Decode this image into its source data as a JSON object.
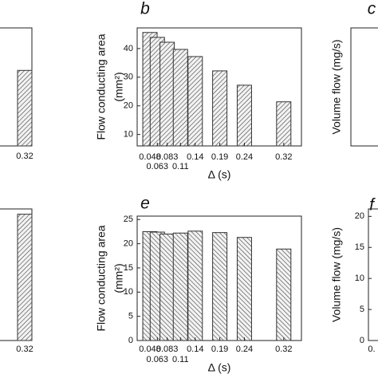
{
  "chart_data": [
    {
      "type": "bar",
      "x": [
        0.32
      ],
      "values": [
        32
      ],
      "ylim": [
        0,
        50
      ],
      "xticks": [
        0.32
      ]
    },
    {
      "type": "bar",
      "title": "b",
      "ylabel": [
        "Flow conducting area",
        "(mm²)"
      ],
      "xlabel": "Δ (s)",
      "x": [
        0.048,
        0.063,
        0.083,
        0.11,
        0.14,
        0.19,
        0.24,
        0.32
      ],
      "values": [
        45.6,
        43.9,
        42.2,
        39.7,
        37.2,
        32.2,
        27.2,
        21.4
      ],
      "xlim": [
        0.022,
        0.356
      ],
      "xticks": [
        0.048,
        0.063,
        0.083,
        0.11,
        0.14,
        0.19,
        0.24,
        0.32
      ],
      "ylim": [
        6,
        47.2
      ],
      "yticks": [
        10,
        20,
        30,
        40
      ],
      "color": "#333333"
    },
    {
      "type": "frame",
      "title": "c",
      "ylabel": [
        "Volume flow (mg/s)"
      ]
    },
    {
      "type": "bar",
      "x": [
        0.32
      ],
      "values": [
        24
      ],
      "ylim": [
        0,
        25
      ],
      "xticks": [
        0.32
      ]
    },
    {
      "type": "bar",
      "title": "e",
      "ylabel": [
        "Flow conducting area",
        "(mm²)"
      ],
      "xlabel": "Δ (s)",
      "x": [
        0.048,
        0.063,
        0.083,
        0.11,
        0.14,
        0.19,
        0.24,
        0.32
      ],
      "values": [
        22.5,
        22.4,
        22.0,
        22.2,
        22.6,
        22.3,
        21.3,
        18.9
      ],
      "xlim": [
        0.022,
        0.356
      ],
      "xticks": [
        0.048,
        0.063,
        0.083,
        0.11,
        0.14,
        0.19,
        0.24,
        0.32
      ],
      "ylim": [
        0,
        25.7
      ],
      "yticks": [
        0,
        5,
        10,
        15,
        20,
        25
      ],
      "color": "#333333"
    },
    {
      "type": "frame",
      "title": "f",
      "ylabel": [
        "Volume flow (mg/s)"
      ],
      "ylim": [
        0,
        21.2
      ],
      "yticks": [
        0,
        5,
        10,
        15,
        20
      ],
      "xticks": [
        {
          "value": 0,
          "label": "0."
        }
      ]
    }
  ]
}
